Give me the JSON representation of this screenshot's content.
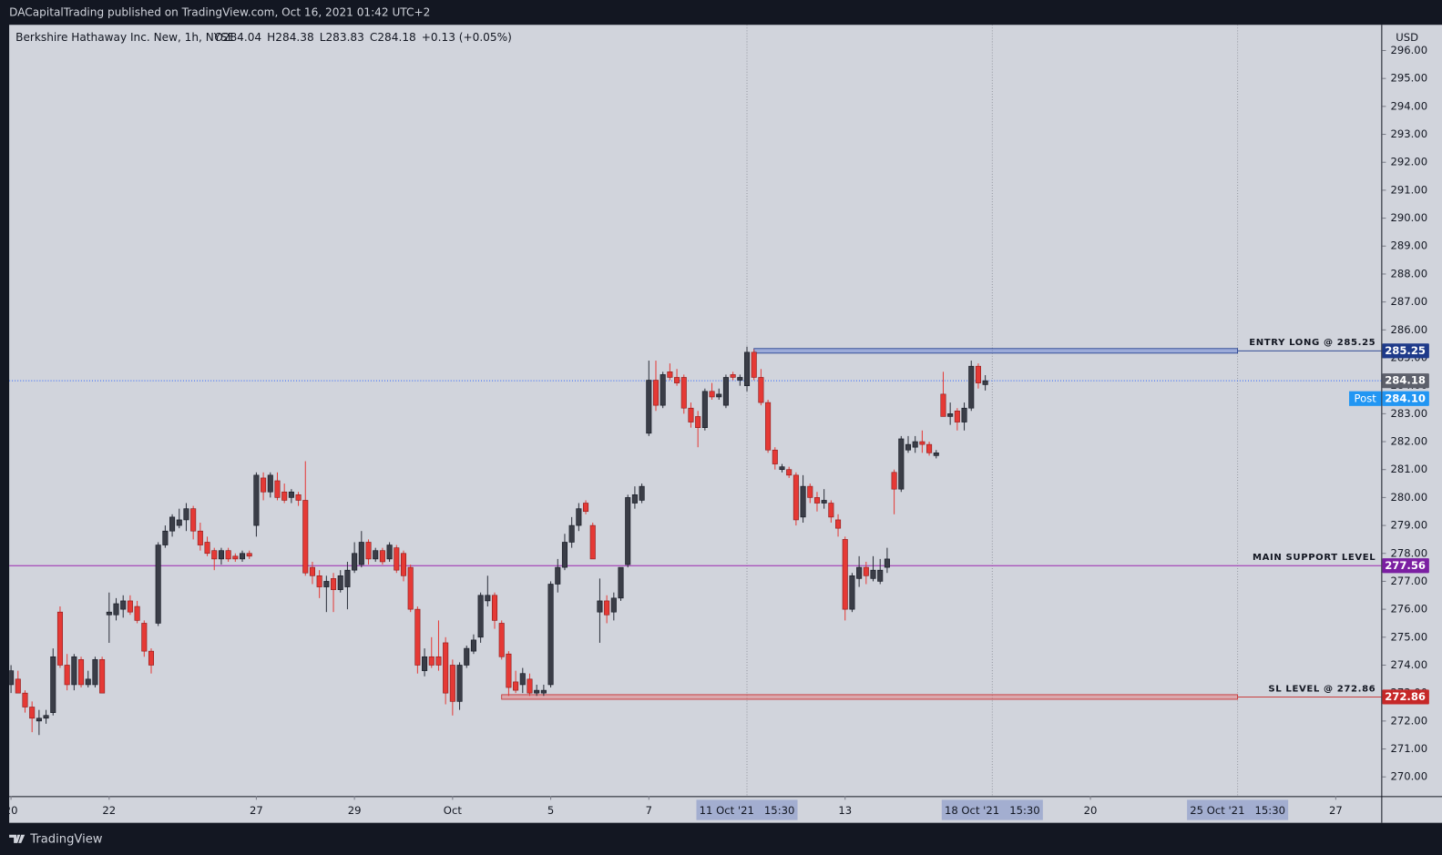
{
  "header": "DACapitalTrading published on TradingView.com, Oct 16, 2021 01:42 UTC+2",
  "footer": "TradingView",
  "chart_data": {
    "type": "candlestick",
    "legend": {
      "symbol": "Berkshire Hathaway Inc. New, 1h, NYSE",
      "ohlc": [
        "O284.04",
        "H284.38",
        "L283.83",
        "C284.18",
        "+0.13 (+0.05%)"
      ]
    },
    "currency": "USD",
    "up_color": "#3a3d47",
    "down_color": "#e53935",
    "wick_color": "#2a2e39",
    "background": "#d1d4dc",
    "xlim": [
      -0.26,
      195.5
    ],
    "xticks": [
      {
        "value": 0,
        "label": "20"
      },
      {
        "value": 14,
        "label": "22"
      },
      {
        "value": 35,
        "label": "27"
      },
      {
        "value": 49,
        "label": "29"
      },
      {
        "value": 63,
        "label": "Oct"
      },
      {
        "value": 77,
        "label": "5"
      },
      {
        "value": 91,
        "label": "7"
      },
      {
        "value": 105,
        "label": "11 Oct '21   15:30",
        "highlight": true
      },
      {
        "value": 119,
        "label": "13"
      },
      {
        "value": 140,
        "label": "18 Oct '21   15:30",
        "highlight": true
      },
      {
        "value": 154,
        "label": "20"
      },
      {
        "value": 175,
        "label": "25 Oct '21   15:30",
        "highlight": true
      },
      {
        "value": 189,
        "label": "27"
      }
    ],
    "ylim": [
      269.31,
      296.92
    ],
    "yticks": [
      {
        "value": 270,
        "label": "270.00"
      },
      {
        "value": 271,
        "label": "271.00"
      },
      {
        "value": 272,
        "label": "272.00"
      },
      {
        "value": 273,
        "label": "273.00"
      },
      {
        "value": 274,
        "label": "274.00"
      },
      {
        "value": 275,
        "label": "275.00"
      },
      {
        "value": 276,
        "label": "276.00"
      },
      {
        "value": 277,
        "label": "277.00"
      },
      {
        "value": 278,
        "label": "278.00"
      },
      {
        "value": 279,
        "label": "279.00"
      },
      {
        "value": 280,
        "label": "280.00"
      },
      {
        "value": 281,
        "label": "281.00"
      },
      {
        "value": 282,
        "label": "282.00"
      },
      {
        "value": 283,
        "label": "283.00"
      },
      {
        "value": 284,
        "label": "284.00"
      },
      {
        "value": 285,
        "label": "285.00"
      },
      {
        "value": 286,
        "label": "286.00"
      },
      {
        "value": 287,
        "label": "287.00"
      },
      {
        "value": 288,
        "label": "288.00"
      },
      {
        "value": 289,
        "label": "289.00"
      },
      {
        "value": 290,
        "label": "290.00"
      },
      {
        "value": 291,
        "label": "291.00"
      },
      {
        "value": 292,
        "label": "292.00"
      },
      {
        "value": 293,
        "label": "293.00"
      },
      {
        "value": 294,
        "label": "294.00"
      },
      {
        "value": 295,
        "label": "295.00"
      },
      {
        "value": 296,
        "label": "296.00"
      }
    ],
    "levels": [
      {
        "label": "ENTRY LONG @ 285.25",
        "value": 285.25,
        "color": "#1e3a8a",
        "band": "#5b7bd5",
        "from": 106,
        "to": 175
      },
      {
        "label": "MAIN SUPPORT LEVEL",
        "value": 277.56,
        "color": "#7b1fa2",
        "band": "#9c27b0"
      },
      {
        "label": "SL LEVEL @ 272.86",
        "value": 272.86,
        "color": "#c62828",
        "band": "#e57373",
        "from": 70,
        "to": 175
      }
    ],
    "last_price": {
      "value": 284.18,
      "color": "#5d606b"
    },
    "post_price": {
      "label": "Post",
      "value": 284.1,
      "value_label": "284.10",
      "color": "#2196f3"
    },
    "candles": [
      [
        273.3,
        274.0,
        273.0,
        273.8
      ],
      [
        273.5,
        273.8,
        273.0,
        273.0
      ],
      [
        273.0,
        273.1,
        272.3,
        272.5
      ],
      [
        272.5,
        272.7,
        271.6,
        272.1
      ],
      [
        272.0,
        272.4,
        271.5,
        272.1
      ],
      [
        272.1,
        272.4,
        271.9,
        272.2
      ],
      [
        272.3,
        274.6,
        272.2,
        274.3
      ],
      [
        275.9,
        276.1,
        273.9,
        274.0
      ],
      [
        274.0,
        274.4,
        273.1,
        273.3
      ],
      [
        273.3,
        274.4,
        273.1,
        274.3
      ],
      [
        274.2,
        274.3,
        273.2,
        273.3
      ],
      [
        273.3,
        273.8,
        273.2,
        273.5
      ],
      [
        273.3,
        274.3,
        273.2,
        274.2
      ],
      [
        274.2,
        274.3,
        273.0,
        273.0
      ],
      [
        275.8,
        276.6,
        274.8,
        275.9
      ],
      [
        275.8,
        276.4,
        275.6,
        276.2
      ],
      [
        276.0,
        276.5,
        275.7,
        276.3
      ],
      [
        276.3,
        276.5,
        275.8,
        275.9
      ],
      [
        276.1,
        276.3,
        275.5,
        275.6
      ],
      [
        275.5,
        275.6,
        274.3,
        274.5
      ],
      [
        274.5,
        274.6,
        273.7,
        274.0
      ],
      [
        275.5,
        278.4,
        275.4,
        278.3
      ],
      [
        278.3,
        279.0,
        278.2,
        278.8
      ],
      [
        278.8,
        279.4,
        278.6,
        279.3
      ],
      [
        279.0,
        279.6,
        278.9,
        279.2
      ],
      [
        279.2,
        279.8,
        278.8,
        279.6
      ],
      [
        279.6,
        279.7,
        278.5,
        278.8
      ],
      [
        278.8,
        279.1,
        278.1,
        278.3
      ],
      [
        278.4,
        278.6,
        277.9,
        278.0
      ],
      [
        278.1,
        278.2,
        277.4,
        277.8
      ],
      [
        277.8,
        278.2,
        277.6,
        278.1
      ],
      [
        278.1,
        278.2,
        277.7,
        277.8
      ],
      [
        277.9,
        278.0,
        277.7,
        277.8
      ],
      [
        277.8,
        278.1,
        277.7,
        278.0
      ],
      [
        278.0,
        278.1,
        277.8,
        277.9
      ],
      [
        279.0,
        280.9,
        278.6,
        280.8
      ],
      [
        280.7,
        280.9,
        279.9,
        280.2
      ],
      [
        280.2,
        280.9,
        280.0,
        280.8
      ],
      [
        280.6,
        280.9,
        279.9,
        280.0
      ],
      [
        280.2,
        280.5,
        279.8,
        279.9
      ],
      [
        280.0,
        280.3,
        279.8,
        280.2
      ],
      [
        280.1,
        280.2,
        279.7,
        279.9
      ],
      [
        279.9,
        281.3,
        277.2,
        277.3
      ],
      [
        277.5,
        277.7,
        276.9,
        277.2
      ],
      [
        277.2,
        277.4,
        276.4,
        276.8
      ],
      [
        276.8,
        277.2,
        275.9,
        277.0
      ],
      [
        277.1,
        277.3,
        275.9,
        276.7
      ],
      [
        276.7,
        277.4,
        276.6,
        277.2
      ],
      [
        276.8,
        277.7,
        276.0,
        277.4
      ],
      [
        277.4,
        278.4,
        277.3,
        278.0
      ],
      [
        277.6,
        278.8,
        277.5,
        278.4
      ],
      [
        278.4,
        278.5,
        277.6,
        277.8
      ],
      [
        277.8,
        278.2,
        277.7,
        278.1
      ],
      [
        278.1,
        278.2,
        277.6,
        277.7
      ],
      [
        277.8,
        278.4,
        277.7,
        278.3
      ],
      [
        278.2,
        278.3,
        277.3,
        277.4
      ],
      [
        278.0,
        278.1,
        277.0,
        277.2
      ],
      [
        277.5,
        277.6,
        275.9,
        276.0
      ],
      [
        276.0,
        276.1,
        273.7,
        274.0
      ],
      [
        273.8,
        274.6,
        273.6,
        274.3
      ],
      [
        274.3,
        275.0,
        273.9,
        274.0
      ],
      [
        274.3,
        275.6,
        273.8,
        274.0
      ],
      [
        274.8,
        275.0,
        272.6,
        273.0
      ],
      [
        274.0,
        274.2,
        272.2,
        272.7
      ],
      [
        272.7,
        274.1,
        272.4,
        274.0
      ],
      [
        274.0,
        274.7,
        273.9,
        274.6
      ],
      [
        274.5,
        275.1,
        274.4,
        274.9
      ],
      [
        275.0,
        276.6,
        274.8,
        276.5
      ],
      [
        276.3,
        277.2,
        276.1,
        276.5
      ],
      [
        276.5,
        276.6,
        275.3,
        275.6
      ],
      [
        275.5,
        275.6,
        274.2,
        274.3
      ],
      [
        274.4,
        274.5,
        272.9,
        273.2
      ],
      [
        273.4,
        273.8,
        273.0,
        273.1
      ],
      [
        273.3,
        273.9,
        273.0,
        273.7
      ],
      [
        273.5,
        273.7,
        272.9,
        273.0
      ],
      [
        273.0,
        273.3,
        272.9,
        273.1
      ],
      [
        273.0,
        273.3,
        272.9,
        273.1
      ],
      [
        273.3,
        277.0,
        273.2,
        276.9
      ],
      [
        276.9,
        277.8,
        276.6,
        277.5
      ],
      [
        277.5,
        278.7,
        277.4,
        278.4
      ],
      [
        278.4,
        279.3,
        278.2,
        279.0
      ],
      [
        279.0,
        279.8,
        278.8,
        279.6
      ],
      [
        279.8,
        279.9,
        279.4,
        279.5
      ],
      [
        279.0,
        279.1,
        277.8,
        277.8
      ],
      [
        275.9,
        277.1,
        274.8,
        276.3
      ],
      [
        276.3,
        276.5,
        275.5,
        275.8
      ],
      [
        275.9,
        276.6,
        275.6,
        276.4
      ],
      [
        276.4,
        277.5,
        276.3,
        277.5
      ],
      [
        277.6,
        280.1,
        277.5,
        280.0
      ],
      [
        279.8,
        280.4,
        279.6,
        280.1
      ],
      [
        279.9,
        280.5,
        279.8,
        280.4
      ],
      [
        282.3,
        284.9,
        282.2,
        284.2
      ],
      [
        284.2,
        284.9,
        283.1,
        283.3
      ],
      [
        283.3,
        284.5,
        283.2,
        284.4
      ],
      [
        284.5,
        284.8,
        284.2,
        284.3
      ],
      [
        284.3,
        284.6,
        284.0,
        284.1
      ],
      [
        284.3,
        284.4,
        283.0,
        283.2
      ],
      [
        283.2,
        283.4,
        282.5,
        282.7
      ],
      [
        282.9,
        283.1,
        281.8,
        282.5
      ],
      [
        282.5,
        283.9,
        282.4,
        283.8
      ],
      [
        283.8,
        284.1,
        283.5,
        283.6
      ],
      [
        283.6,
        283.9,
        283.5,
        283.7
      ],
      [
        283.3,
        284.4,
        283.2,
        284.3
      ],
      [
        284.4,
        284.5,
        284.2,
        284.3
      ],
      [
        284.2,
        284.4,
        284.0,
        284.3
      ],
      [
        284.0,
        285.4,
        283.8,
        285.2
      ],
      [
        285.2,
        285.3,
        284.2,
        284.3
      ],
      [
        284.3,
        284.6,
        283.3,
        283.4
      ],
      [
        283.4,
        283.5,
        281.6,
        281.7
      ],
      [
        281.7,
        281.8,
        281.0,
        281.2
      ],
      [
        281.0,
        281.2,
        280.9,
        281.1
      ],
      [
        281.0,
        281.1,
        280.7,
        280.8
      ],
      [
        280.8,
        280.9,
        279.0,
        279.2
      ],
      [
        279.3,
        280.8,
        279.1,
        280.4
      ],
      [
        280.4,
        280.5,
        279.8,
        280.0
      ],
      [
        280.0,
        280.2,
        279.5,
        279.8
      ],
      [
        279.8,
        280.3,
        279.6,
        279.9
      ],
      [
        279.8,
        279.9,
        279.1,
        279.3
      ],
      [
        279.2,
        279.4,
        278.6,
        278.9
      ],
      [
        278.5,
        278.6,
        275.6,
        276.0
      ],
      [
        276.0,
        277.3,
        275.9,
        277.2
      ],
      [
        277.1,
        277.9,
        276.8,
        277.5
      ],
      [
        277.5,
        277.7,
        276.9,
        277.2
      ],
      [
        277.1,
        277.9,
        277.0,
        277.4
      ],
      [
        277.0,
        277.8,
        276.9,
        277.4
      ],
      [
        277.5,
        278.2,
        277.3,
        277.8
      ],
      [
        280.9,
        281.0,
        279.4,
        280.3
      ],
      [
        280.3,
        282.2,
        280.2,
        282.1
      ],
      [
        281.7,
        282.2,
        281.6,
        281.9
      ],
      [
        281.8,
        282.2,
        281.6,
        282.0
      ],
      [
        282.0,
        282.4,
        281.6,
        281.9
      ],
      [
        281.9,
        282.0,
        281.5,
        281.6
      ],
      [
        281.5,
        281.7,
        281.4,
        281.6
      ],
      [
        283.7,
        284.5,
        282.9,
        282.9
      ],
      [
        282.9,
        283.4,
        282.6,
        283.0
      ],
      [
        283.1,
        283.2,
        282.4,
        282.7
      ],
      [
        282.7,
        283.4,
        282.4,
        283.2
      ],
      [
        283.2,
        284.9,
        283.1,
        284.7
      ],
      [
        284.7,
        284.8,
        283.9,
        284.1
      ],
      [
        284.04,
        284.38,
        283.83,
        284.18
      ]
    ]
  }
}
